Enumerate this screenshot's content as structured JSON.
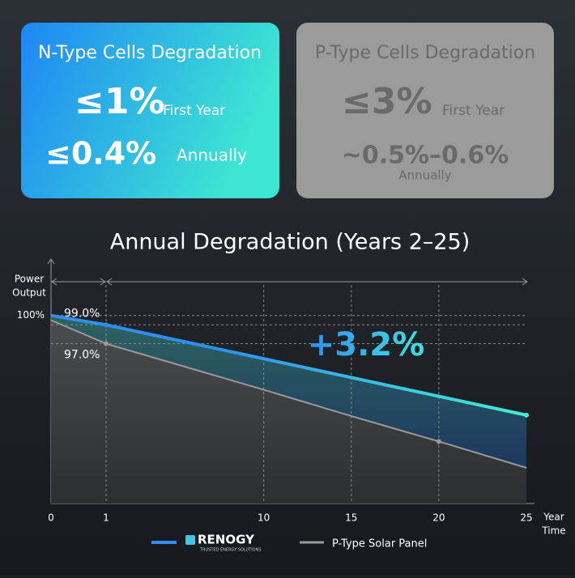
{
  "cards": [
    {
      "title": "N-Type Cells Degradation",
      "rows": [
        {
          "value": "≤1%",
          "label": "First Year"
        },
        {
          "value": "≤0.4%",
          "label": "Annually"
        }
      ]
    },
    {
      "title": "P-Type Cells Degradation",
      "rows": [
        {
          "value": "≤3%",
          "label": "First Year"
        },
        {
          "value": "~0.5%–0.6%",
          "label": "Annually"
        }
      ]
    }
  ],
  "brand_tagline": "TRUSTED ENERGY SOLUTIONS",
  "chart_data": {
    "type": "line",
    "title": "Annual Degradation (Years 2–25)",
    "y_label": "Power Output",
    "x_label": "Year Time",
    "x": [
      0,
      1,
      10,
      15,
      20,
      25
    ],
    "series": [
      {
        "name": "RENOGY",
        "color": "#2f8ff0",
        "gradient_to": "#40f0d0",
        "values": [
          100,
          99,
          95.4,
          93.4,
          91.4,
          89.4
        ]
      },
      {
        "name": "P-Type Solar Panel",
        "color": "#9a9a9a",
        "values": [
          99.5,
          97,
          92.1,
          89.3,
          86.6,
          83.8
        ]
      }
    ],
    "xlim": [
      0,
      25
    ],
    "xticks": [
      0,
      1,
      10,
      15,
      20,
      25
    ],
    "ylim": [
      80,
      106
    ],
    "yticks": [
      {
        "value": 100,
        "label": "100%"
      }
    ],
    "annotations": [
      {
        "text": "99.0%",
        "value": 99
      },
      {
        "text": "97.0%",
        "value": 97
      },
      {
        "text": "+3.2%"
      }
    ]
  }
}
